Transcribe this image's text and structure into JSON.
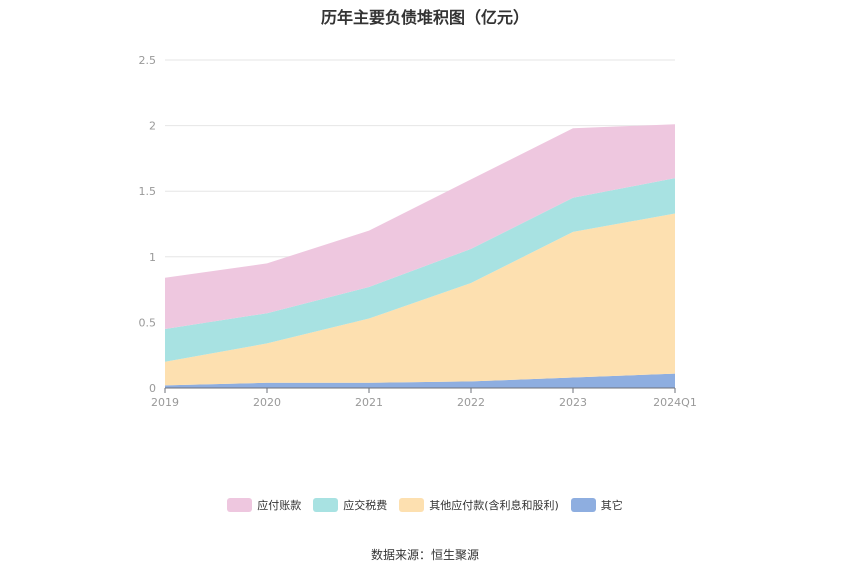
{
  "title": "历年主要负债堆积图（亿元）",
  "source": "数据来源：恒生聚源",
  "chart_data": {
    "type": "area",
    "stacked": true,
    "title": "历年主要负债堆积图（亿元）",
    "categories": [
      "2019",
      "2020",
      "2021",
      "2022",
      "2023",
      "2024Q1"
    ],
    "ylim": [
      0,
      2.5
    ],
    "yticks": [
      "0",
      "0.5",
      "1",
      "1.5",
      "2",
      "2.5"
    ],
    "grid": true,
    "legend_position": "bottom",
    "series": [
      {
        "name": "其它",
        "color": "#8eaee0",
        "values": [
          0.02,
          0.04,
          0.04,
          0.05,
          0.08,
          0.11
        ]
      },
      {
        "name": "其他应付款(含利息和股利)",
        "color": "#fde0b0",
        "values": [
          0.18,
          0.3,
          0.49,
          0.75,
          1.11,
          1.22
        ]
      },
      {
        "name": "应交税费",
        "color": "#a8e2e2",
        "values": [
          0.25,
          0.23,
          0.24,
          0.26,
          0.26,
          0.27
        ]
      },
      {
        "name": "应付账款",
        "color": "#eec7df",
        "values": [
          0.39,
          0.38,
          0.43,
          0.53,
          0.53,
          0.41
        ]
      }
    ],
    "legend_order": [
      "应付账款",
      "应交税费",
      "其他应付款(含利息和股利)",
      "其它"
    ]
  }
}
